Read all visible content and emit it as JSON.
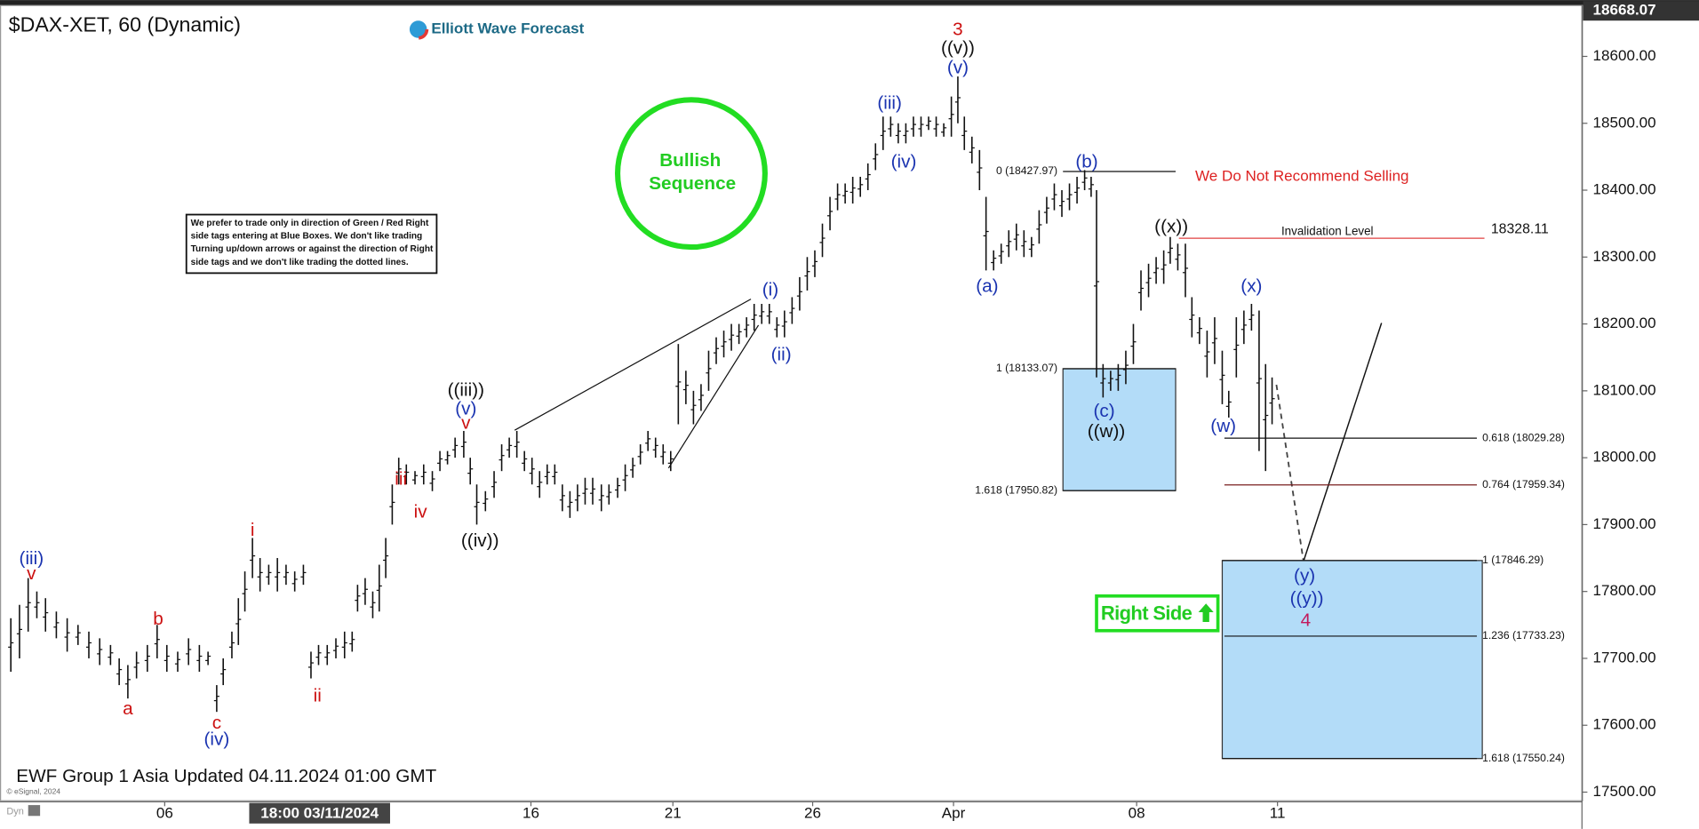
{
  "chart_data": {
    "type": "ohlc",
    "title": "$DAX-XET, 60 (Dynamic)",
    "logo": "Elliott Wave Forecast",
    "bar_color": "#111111",
    "x": [
      10,
      18,
      26,
      34,
      42,
      52,
      62,
      72,
      82,
      92,
      102,
      110,
      118,
      126,
      136,
      145,
      154,
      164,
      174,
      184,
      192,
      200,
      206,
      214,
      220,
      226,
      233,
      240,
      248,
      256,
      264,
      272,
      280,
      287,
      294,
      302,
      310,
      318,
      325,
      330,
      337,
      344,
      350,
      356,
      362,
      368,
      375,
      383,
      391,
      399,
      406,
      413,
      420,
      428,
      434,
      440,
      448,
      456,
      463,
      470,
      477,
      484,
      491,
      498,
      505,
      512,
      519,
      526,
      533,
      540,
      547,
      555,
      562,
      570,
      577,
      584,
      591,
      598,
      605,
      612,
      619,
      626,
      633,
      640,
      647,
      654,
      661,
      668,
      675,
      682,
      689,
      696,
      703,
      710,
      717,
      724,
      731,
      738,
      745,
      752,
      759,
      766,
      773,
      780,
      787,
      794,
      801,
      808,
      815,
      822,
      829,
      836,
      843,
      850,
      857,
      864,
      871,
      878,
      884,
      890,
      897,
      904,
      910,
      917,
      924,
      931,
      938,
      945,
      952,
      959,
      966,
      973,
      980,
      987,
      994,
      1001,
      1007,
      1012,
      1018,
      1025,
      1032,
      1039,
      1046,
      1053,
      1060,
      1067,
      1074,
      1080,
      1087,
      1094,
      1100,
      1107,
      1114,
      1121,
      1128,
      1134,
      1141,
      1148,
      1155,
      1162,
      1168,
      1174
    ],
    "high": [
      17760,
      17780,
      17820,
      17800,
      17790,
      17770,
      17760,
      17750,
      17740,
      17730,
      17720,
      17700,
      17690,
      17710,
      17720,
      17750,
      17720,
      17710,
      17730,
      17720,
      17710,
      17660,
      17700,
      17740,
      17790,
      17830,
      17880,
      17850,
      17840,
      17850,
      17840,
      17830,
      17840,
      17710,
      17720,
      17720,
      17730,
      17740,
      17740,
      17810,
      17820,
      17800,
      17840,
      17880,
      17960,
      18000,
      17990,
      17980,
      17990,
      17980,
      18010,
      18010,
      18030,
      18040,
      18000,
      17960,
      17950,
      17980,
      18020,
      18030,
      18040,
      18010,
      18000,
      17980,
      17990,
      17990,
      17960,
      17950,
      17960,
      17970,
      17970,
      17960,
      17960,
      17970,
      17990,
      18000,
      18020,
      18040,
      18030,
      18020,
      18010,
      18170,
      18130,
      18100,
      18110,
      18160,
      18180,
      18190,
      18200,
      18200,
      18210,
      18230,
      18230,
      18230,
      18210,
      18220,
      18240,
      18270,
      18300,
      18310,
      18350,
      18390,
      18410,
      18410,
      18420,
      18420,
      18440,
      18470,
      18510,
      18510,
      18500,
      18500,
      18510,
      18510,
      18510,
      18510,
      18500,
      18540,
      18570,
      18510,
      18480,
      18460,
      18390,
      18310,
      18320,
      18340,
      18350,
      18340,
      18330,
      18370,
      18390,
      18410,
      18400,
      18410,
      18420,
      18430,
      18420,
      18400,
      18140,
      18130,
      18140,
      18160,
      18200,
      18280,
      18290,
      18300,
      18310,
      18330,
      18320,
      18320,
      18240,
      18210,
      18190,
      18210,
      18160,
      18100,
      18210,
      18220,
      18230,
      18220,
      18140,
      18120
    ],
    "low": [
      17680,
      17700,
      17740,
      17760,
      17740,
      17730,
      17710,
      17720,
      17700,
      17690,
      17690,
      17660,
      17640,
      17670,
      17680,
      17700,
      17680,
      17680,
      17690,
      17680,
      17690,
      17620,
      17660,
      17700,
      17720,
      17770,
      17820,
      17800,
      17810,
      17800,
      17810,
      17800,
      17810,
      17670,
      17690,
      17690,
      17700,
      17700,
      17710,
      17770,
      17780,
      17760,
      17770,
      17820,
      17900,
      17960,
      17960,
      17960,
      17960,
      17950,
      17980,
      17990,
      18000,
      18000,
      17960,
      17900,
      17920,
      17940,
      17980,
      18000,
      18000,
      17980,
      17960,
      17940,
      17960,
      17960,
      17920,
      17910,
      17920,
      17930,
      17930,
      17920,
      17930,
      17940,
      17950,
      17970,
      17990,
      18010,
      18000,
      17990,
      17980,
      18050,
      18080,
      18050,
      18070,
      18100,
      18140,
      18150,
      18160,
      18170,
      18180,
      18190,
      18200,
      18200,
      18180,
      18180,
      18200,
      18220,
      18250,
      18270,
      18300,
      18340,
      18370,
      18380,
      18380,
      18390,
      18400,
      18430,
      18460,
      18480,
      18470,
      18470,
      18480,
      18480,
      18490,
      18480,
      18480,
      18480,
      18500,
      18460,
      18440,
      18400,
      18280,
      18280,
      18290,
      18300,
      18310,
      18300,
      18300,
      18320,
      18350,
      18370,
      18360,
      18370,
      18380,
      18400,
      18390,
      18120,
      18090,
      18100,
      18100,
      18110,
      18140,
      18220,
      18240,
      18260,
      18260,
      18290,
      18280,
      18240,
      18180,
      18170,
      18120,
      18140,
      18080,
      18060,
      18120,
      18170,
      18190,
      18010,
      17980,
      18050
    ],
    "xlim": [
      0,
      1460
    ],
    "ylim": [
      17485,
      18680
    ],
    "xticks": [
      {
        "value": 152,
        "label": "06"
      },
      {
        "value": 490,
        "label": "16"
      },
      {
        "value": 621,
        "label": "21"
      },
      {
        "value": 750,
        "label": "26"
      },
      {
        "value": 880,
        "label": "Apr"
      },
      {
        "value": 1049,
        "label": "08"
      },
      {
        "value": 1179,
        "label": "11"
      }
    ],
    "cursor_label": "18:00 03/11/2024",
    "yticks": [
      {
        "value": 17500,
        "label": "17500.00"
      },
      {
        "value": 17600,
        "label": "17600.00"
      },
      {
        "value": 17700,
        "label": "17700.00"
      },
      {
        "value": 17800,
        "label": "17800.00"
      },
      {
        "value": 17900,
        "label": "17900.00"
      },
      {
        "value": 18000,
        "label": "18000.00"
      },
      {
        "value": 18100,
        "label": "18100.00"
      },
      {
        "value": 18200,
        "label": "18200.00"
      },
      {
        "value": 18300,
        "label": "18300.00"
      },
      {
        "value": 18400,
        "label": "18400.00"
      },
      {
        "value": 18500,
        "label": "18500.00"
      },
      {
        "value": 18600,
        "label": "18600.00"
      }
    ],
    "last_price": 18668.07,
    "fib_levels": [
      {
        "label": "0 (18427.97)",
        "value": 18427.97
      },
      {
        "label": "1 (18133.07)",
        "value": 18133.07
      },
      {
        "label": "1.618 (17950.82)",
        "value": 17950.82
      },
      {
        "label": "0.618 (18029.28)",
        "value": 18029.28
      },
      {
        "label": "0.764 (17959.34)",
        "value": 17959.34
      },
      {
        "label": "1 (17846.29)",
        "value": 17846.29
      },
      {
        "label": "1.236 (17733.23)",
        "value": 17733.23
      },
      {
        "label": "1.618 (17550.24)",
        "value": 17550.24
      }
    ],
    "invalidation": {
      "label": "Invalidation Level",
      "value": 18328.11
    },
    "wave_labels": [
      {
        "text": "(iii)",
        "color": "#1a33b0"
      },
      {
        "text": "v",
        "color": "#cc1111"
      },
      {
        "text": "a",
        "color": "#cc1111"
      },
      {
        "text": "b",
        "color": "#cc1111"
      },
      {
        "text": "c",
        "color": "#cc1111"
      },
      {
        "text": "(iv)",
        "color": "#1a33b0"
      },
      {
        "text": "i",
        "color": "#cc1111"
      },
      {
        "text": "ii",
        "color": "#cc1111"
      },
      {
        "text": "iii",
        "color": "#cc1111"
      },
      {
        "text": "iv",
        "color": "#cc1111"
      },
      {
        "text": "((iii))",
        "color": "#111111"
      },
      {
        "text": "(v)",
        "color": "#1a33b0"
      },
      {
        "text": "v",
        "color": "#cc1111"
      },
      {
        "text": "((iv))",
        "color": "#111111"
      },
      {
        "text": "(i)",
        "color": "#1a33b0"
      },
      {
        "text": "(ii)",
        "color": "#1a33b0"
      },
      {
        "text": "(iii)",
        "color": "#1a33b0"
      },
      {
        "text": "(iv)",
        "color": "#1a33b0"
      },
      {
        "text": "3",
        "color": "#cc1111"
      },
      {
        "text": "((v))",
        "color": "#111111"
      },
      {
        "text": "(v)",
        "color": "#1a33b0"
      },
      {
        "text": "(a)",
        "color": "#1a33b0"
      },
      {
        "text": "(b)",
        "color": "#1a33b0"
      },
      {
        "text": "(c)",
        "color": "#1a33b0"
      },
      {
        "text": "((w))",
        "color": "#111111"
      },
      {
        "text": "((x))",
        "color": "#111111"
      },
      {
        "text": "(w)",
        "color": "#1a33b0"
      },
      {
        "text": "(x)",
        "color": "#1a33b0"
      },
      {
        "text": "(y)",
        "color": "#1a33b0"
      },
      {
        "text": "((y))",
        "color": "#1a33b0"
      },
      {
        "text": "4",
        "color": "#c2185b"
      }
    ],
    "sequence_badge": [
      "Bullish",
      "Sequence"
    ],
    "disclaimer": [
      "We prefer to trade only in direction of Green / Red Right",
      "side tags entering at Blue Boxes. We don't like trading",
      "Turning up/down arrows or against the direction of Right",
      "side tags and we don't like trading the dotted lines."
    ],
    "warning": "We Do Not Recommend Selling",
    "right_side": "Right Side",
    "footer": "EWF Group 1 Asia Updated 04.11.2024 01:00 GMT",
    "copyright": "© eSignal, 2024",
    "dyn": "Dyn"
  }
}
